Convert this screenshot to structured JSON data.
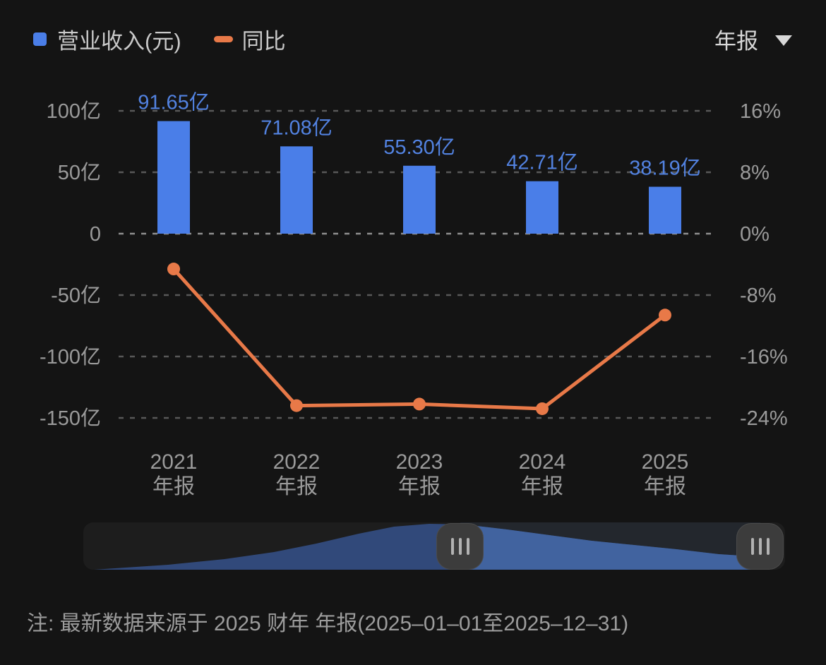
{
  "legend": {
    "revenue_label": "营业收入(元)",
    "yoy_label": "同比"
  },
  "period_selector": {
    "label": "年报"
  },
  "note": "注: 最新数据来源于 2025 财年 年报(2025–01–01至2025–12–31)",
  "colors": {
    "background": "#141414",
    "bar": "#4a7ee8",
    "bar_label": "#5282e0",
    "line": "#e87948",
    "axis_text": "#9a9a9a",
    "legend_text": "#c9c9c9",
    "grid": "#585858",
    "grid_zero": "#8f8f8f",
    "slider_area_selected": "#41639f",
    "slider_area_dim": "#31497a"
  },
  "chart_data": {
    "type": "bar+line combo",
    "categories": [
      {
        "year": "2021",
        "period": "年报"
      },
      {
        "year": "2022",
        "period": "年报"
      },
      {
        "year": "2023",
        "period": "年报"
      },
      {
        "year": "2024",
        "period": "年报"
      },
      {
        "year": "2025",
        "period": "年报"
      }
    ],
    "series": [
      {
        "name": "营业收入(元)",
        "type": "bar",
        "unit": "亿",
        "values": [
          91.65,
          71.08,
          55.3,
          42.71,
          38.19
        ],
        "labels": [
          "91.65亿",
          "71.08亿",
          "55.30亿",
          "42.71亿",
          "38.19亿"
        ]
      },
      {
        "name": "同比",
        "type": "line",
        "unit": "%",
        "values": [
          -4.6,
          -22.4,
          -22.2,
          -22.8,
          -10.6
        ]
      }
    ],
    "left_axis": {
      "label": "营业收入",
      "ticks": [
        "100亿",
        "50亿",
        "0",
        "-50亿",
        "-100亿",
        "-150亿"
      ],
      "values": [
        100,
        50,
        0,
        -50,
        -100,
        -150
      ],
      "range": [
        -150,
        100
      ]
    },
    "right_axis": {
      "label": "同比",
      "ticks": [
        "16%",
        "8%",
        "0%",
        "-8%",
        "-16%",
        "-24%"
      ],
      "values": [
        16,
        8,
        0,
        -8,
        -16,
        -24
      ],
      "range": [
        -24,
        16
      ]
    },
    "grid": "horizontal dashed",
    "legend_position": "top-left"
  }
}
